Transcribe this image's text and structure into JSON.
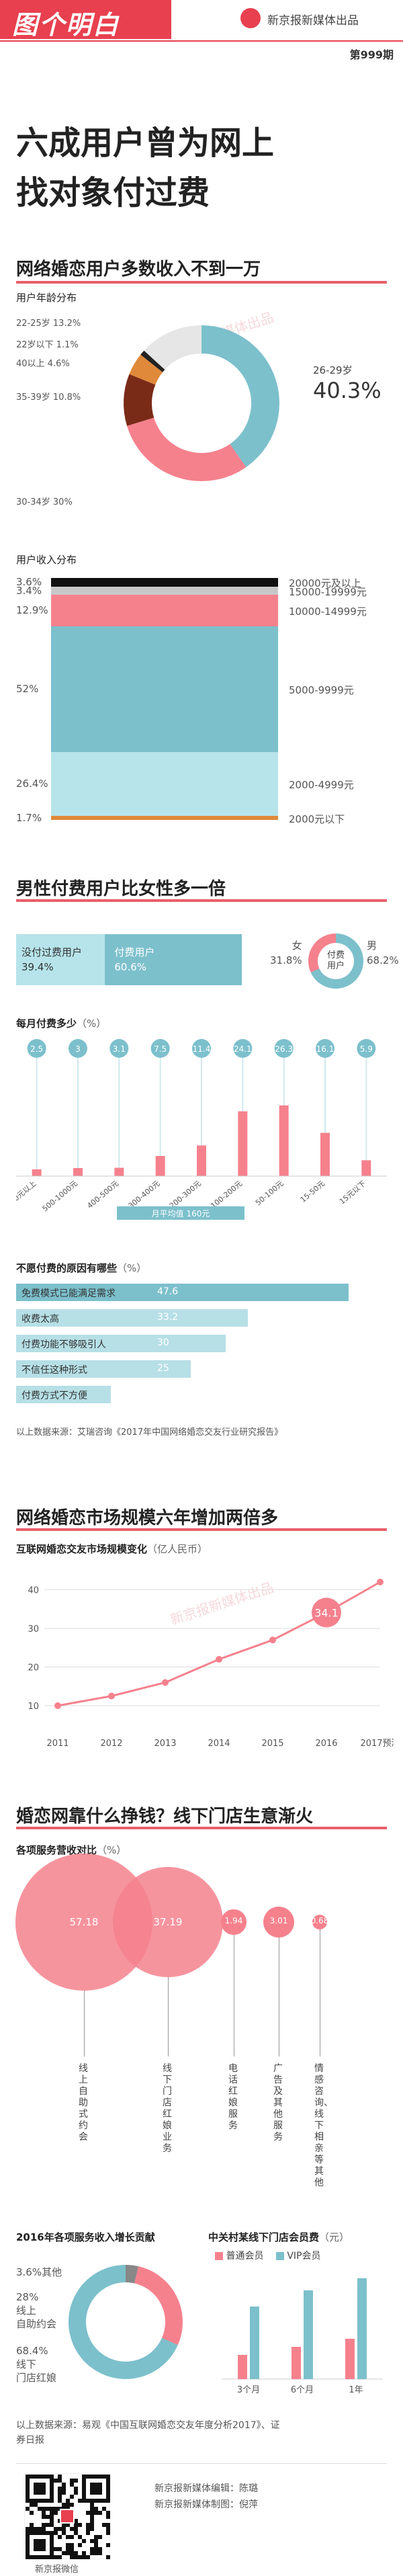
{
  "header": {
    "logo": "图个明白",
    "org": "新京报新媒体出品",
    "issue": "第999期"
  },
  "title": {
    "line1": "六成用户曾为网上",
    "line2": "找对象付过费"
  },
  "watermark": "新京报新媒体出品",
  "section1": {
    "title": "网络婚恋用户多数收入不到一万",
    "age": {
      "label": "用户年龄分布",
      "slices": [
        {
          "label": "26-29岁",
          "value": 40.3,
          "color": "#7cc0cc"
        },
        {
          "label": "30-34岁",
          "value": 30,
          "color": "#f5818d"
        },
        {
          "label": "35-39岁",
          "value": 10.8,
          "color": "#7a2b18"
        },
        {
          "label": "40以上",
          "value": 4.6,
          "color": "#e0893a"
        },
        {
          "label": "22岁以下",
          "value": 1.1,
          "color": "#222222"
        },
        {
          "label": "22-25岁",
          "value": 13.2,
          "color": "#e6e6e6"
        }
      ],
      "t1": "22-25岁 13.2%",
      "t2": "22岁以下 1.1%",
      "t3": "40以上 4.6%",
      "t4": "35-39岁 10.8%",
      "t5": "30-34岁 30%",
      "t6": "26-29岁",
      "t6v": "40.3%"
    },
    "income": {
      "label": "用户收入分布",
      "bands": [
        {
          "label": "20000元及以上",
          "value": 3.6,
          "vtext": "3.6%",
          "color": "#111111"
        },
        {
          "label": "15000-19999元",
          "value": 3.4,
          "vtext": "3.4%",
          "color": "#c8c8c8"
        },
        {
          "label": "10000-14999元",
          "value": 12.9,
          "vtext": "12.9%",
          "color": "#f5818d"
        },
        {
          "label": "5000-9999元",
          "value": 52,
          "vtext": "52%",
          "color": "#7cc0cc"
        },
        {
          "label": "2000-4999元",
          "value": 26.4,
          "vtext": "26.4%",
          "color": "#b6e4ea"
        },
        {
          "label": "2000元以下",
          "value": 1.7,
          "vtext": "1.7%",
          "color": "#e0893a"
        }
      ]
    }
  },
  "section2": {
    "title": "男性付费用户比女性多一倍",
    "bar": {
      "left": "没付过费用户",
      "leftv": "39.4%",
      "right": "付费用户",
      "rightv": "60.6%",
      "paid": 60.6
    },
    "gender": {
      "female": "女",
      "femalev": "31.8%",
      "male": "男",
      "malev": "68.2%",
      "center1": "付费",
      "center2": "用户",
      "malepct": 68.2
    },
    "monthly": {
      "label": "每月付费多少",
      "unit": "（%）",
      "categories": [
        "1000元以上",
        "500-1000元",
        "400-500元",
        "300-400元",
        "200-300元",
        "100-200元",
        "50-100元",
        "15-50元",
        "15元以下"
      ],
      "values": [
        2.5,
        3,
        3.1,
        7.5,
        11.4,
        24.1,
        26.3,
        16.1,
        5.9
      ],
      "vtext": [
        "2.5",
        "3",
        "3.1",
        "7.5",
        "11.4",
        "24.1",
        "26.3",
        "16.1",
        "5.9"
      ],
      "legend": "月平均值  160元"
    },
    "reasons": {
      "label": "不愿付费的原因有哪些",
      "unit": "（%）",
      "items": [
        {
          "label": "免费模式已能满足需求",
          "value": 47.6,
          "vtext": "47.6"
        },
        {
          "label": "收费太高",
          "value": 33.2,
          "vtext": "33.2"
        },
        {
          "label": "付费功能不够吸引人",
          "value": 30,
          "vtext": "30"
        },
        {
          "label": "不信任这种形式",
          "value": 25,
          "vtext": "25"
        },
        {
          "label": "付费方式不方便",
          "value": 13.6,
          "vtext": "13.6"
        }
      ]
    },
    "source": "以上数据来源：艾瑞咨询《2017年中国网络婚恋交友行业研究报告》"
  },
  "section3": {
    "title": "网络婚恋市场规模六年增加两倍多",
    "label": "互联网婚恋交友市场规模变化",
    "unit": "（亿人民币）",
    "chart_data": {
      "type": "line",
      "x": [
        "2011",
        "2012",
        "2013",
        "2014",
        "2015",
        "2016",
        "2017预测"
      ],
      "values": [
        10,
        12.5,
        16,
        22,
        27,
        34.1,
        42
      ],
      "highlight": "34.1",
      "yticks": [
        "10",
        "20",
        "30",
        "40",
        "50"
      ],
      "ylim": [
        10,
        50
      ]
    }
  },
  "section4": {
    "title": "婚恋网靠什么挣钱？线下门店生意渐火",
    "label": "各项服务营收对比",
    "unit": "（%）",
    "bubbles": [
      {
        "value": 57.18,
        "vtext": "57.18",
        "label": "线上自助式约会",
        "color": "#f5818d"
      },
      {
        "value": 37.19,
        "vtext": "37.19",
        "label": "线下门店红娘业务",
        "color": "#f5818d"
      },
      {
        "value": 1.94,
        "vtext": "1.94",
        "label": "电话红娘服务",
        "color": "#f5818d"
      },
      {
        "value": 3.01,
        "vtext": "3.01",
        "label": "广告及其他服务",
        "color": "#f5818d"
      },
      {
        "value": 0.68,
        "vtext": "0.68",
        "label": "情感咨询、线下相亲等其他",
        "color": "#f5818d"
      }
    ],
    "growth": {
      "label": "2016年各项服务收入增长贡献",
      "slices": [
        {
          "label": "3.6%其他",
          "value": 3.6,
          "color": "#888888"
        },
        {
          "label": "28%线上自助约会",
          "value": 28,
          "color": "#f5818d"
        },
        {
          "label": "68.4%线下门店红娘",
          "value": 68.4,
          "color": "#7cc0cc"
        }
      ],
      "t1": "3.6%其他",
      "t2a": "28%",
      "t2b": "线上",
      "t2c": "自助约会",
      "t3a": "68.4%",
      "t3b": "线下",
      "t3c": "门店红娘"
    },
    "members": {
      "label": "中关村某线下门店会员费",
      "unit": "（元）",
      "legend_a": "普通会员",
      "legend_b": "VIP会员",
      "categories": [
        "3个月",
        "6个月",
        "1年"
      ],
      "normal": [
        6000,
        8000,
        10000
      ],
      "vip": [
        18000,
        22000,
        25000
      ]
    },
    "source1": "以上数据来源：易观《中国互联网婚恋交友年度分析2017》、证",
    "source2": "券日报"
  },
  "footer": {
    "editor": "新京报新媒体编辑：陈璐",
    "designer": "新京报新媒体制图：倪萍",
    "qr_caption": "新京报微信"
  }
}
